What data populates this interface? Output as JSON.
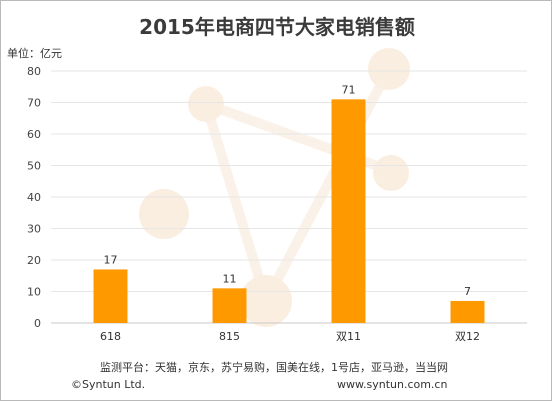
{
  "chart_data": {
    "type": "bar",
    "title": "2015年电商四节大家电销售额",
    "unit_label": "单位：亿元",
    "categories": [
      "618",
      "815",
      "双11",
      "双12"
    ],
    "values": [
      17,
      11,
      71,
      7
    ],
    "ylim": [
      0,
      80
    ],
    "yticks": [
      0,
      10,
      20,
      30,
      40,
      50,
      60,
      70,
      80
    ],
    "grid": true,
    "bar_color": "#FF9900"
  },
  "footer": {
    "source": "监测平台：天猫，京东，苏宁易购，国美在线，1号店，亚马逊，当当网",
    "copyright": "©Syntun Ltd.",
    "website": "www.syntun.com.cn"
  }
}
